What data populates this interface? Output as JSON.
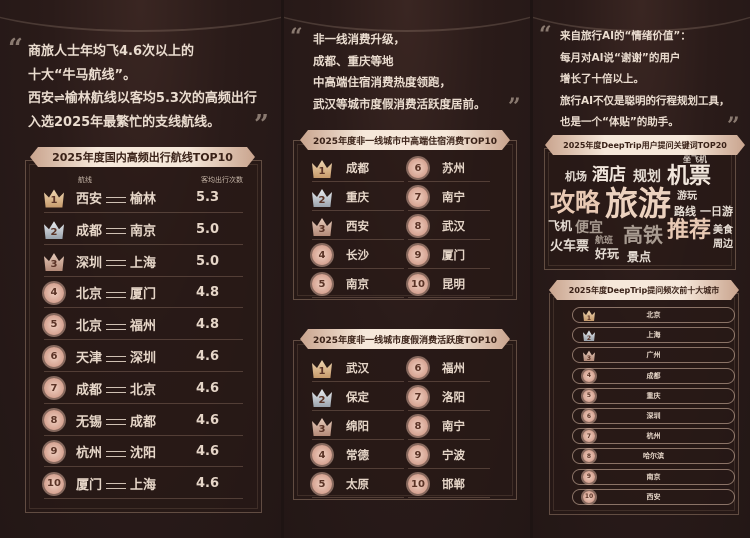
{
  "panel1": {
    "quote": [
      "商旅人士年均飞4.6次以上的",
      "十大“牛马航线”。",
      "西安⇌榆林航线以客均5.3次的高频出行",
      "入选2025年最繁忙的支线航线。"
    ],
    "title": "2025年度国内高频出行航线TOP10",
    "col_route": "航线",
    "col_value": "客均出行次数",
    "rows": [
      {
        "rank": "1",
        "from": "西安",
        "to": "榆林",
        "value": "5.3"
      },
      {
        "rank": "2",
        "from": "成都",
        "to": "南京",
        "value": "5.0"
      },
      {
        "rank": "3",
        "from": "深圳",
        "to": "上海",
        "value": "5.0"
      },
      {
        "rank": "4",
        "from": "北京",
        "to": "厦门",
        "value": "4.8"
      },
      {
        "rank": "5",
        "from": "北京",
        "to": "福州",
        "value": "4.8"
      },
      {
        "rank": "6",
        "from": "天津",
        "to": "深圳",
        "value": "4.6"
      },
      {
        "rank": "7",
        "from": "成都",
        "to": "北京",
        "value": "4.6"
      },
      {
        "rank": "8",
        "from": "无锡",
        "to": "成都",
        "value": "4.6"
      },
      {
        "rank": "9",
        "from": "杭州",
        "to": "沈阳",
        "value": "4.6"
      },
      {
        "rank": "10",
        "from": "厦门",
        "to": "上海",
        "value": "4.6"
      }
    ]
  },
  "panel2": {
    "quote": [
      "非一线消费升级，",
      "成都、重庆等地",
      "中高端住宿消费热度领跑，",
      "武汉等城市度假消费活跃度居前。"
    ],
    "list1": {
      "title": "2025年度非一线城市中高端住宿消费TOP10",
      "cities": [
        "成都",
        "重庆",
        "西安",
        "长沙",
        "南京",
        "苏州",
        "南宁",
        "武汉",
        "厦门",
        "昆明"
      ]
    },
    "list2": {
      "title": "2025年度非一线城市度假消费活跃度TOP10",
      "cities": [
        "武汉",
        "保定",
        "绵阳",
        "常德",
        "太原",
        "福州",
        "洛阳",
        "南宁",
        "宁波",
        "邯郸"
      ]
    }
  },
  "panel3": {
    "quote": [
      "来自旅行AI的“情绪价值”：",
      "每月对AI说“谢谢”的用户",
      "增长了十倍以上。",
      "旅行AI不仅是聪明的行程规划工具，",
      "也是一个“体贴”的助手。"
    ],
    "keywords_title": "2025年度DeepTrip用户提问关键词TOP20",
    "keywords": [
      "坐飞机",
      "机场",
      "酒店",
      "规划",
      "机票",
      "攻略",
      "旅游",
      "游玩",
      "路线",
      "一日游",
      "飞机",
      "便宜",
      "火车票",
      "航班",
      "好玩",
      "高铁",
      "推荐",
      "美食",
      "周边",
      "景点"
    ],
    "cities_title": "2025年度DeepTrip提问频次前十大城市",
    "cities": [
      "北京",
      "上海",
      "广州",
      "成都",
      "重庆",
      "深圳",
      "杭州",
      "哈尔滨",
      "南京",
      "西安"
    ]
  },
  "colors": {
    "background": "#2a1b19",
    "text": "#eadccf",
    "banner": "#f6e8da",
    "accent": "#e8c4b0"
  }
}
